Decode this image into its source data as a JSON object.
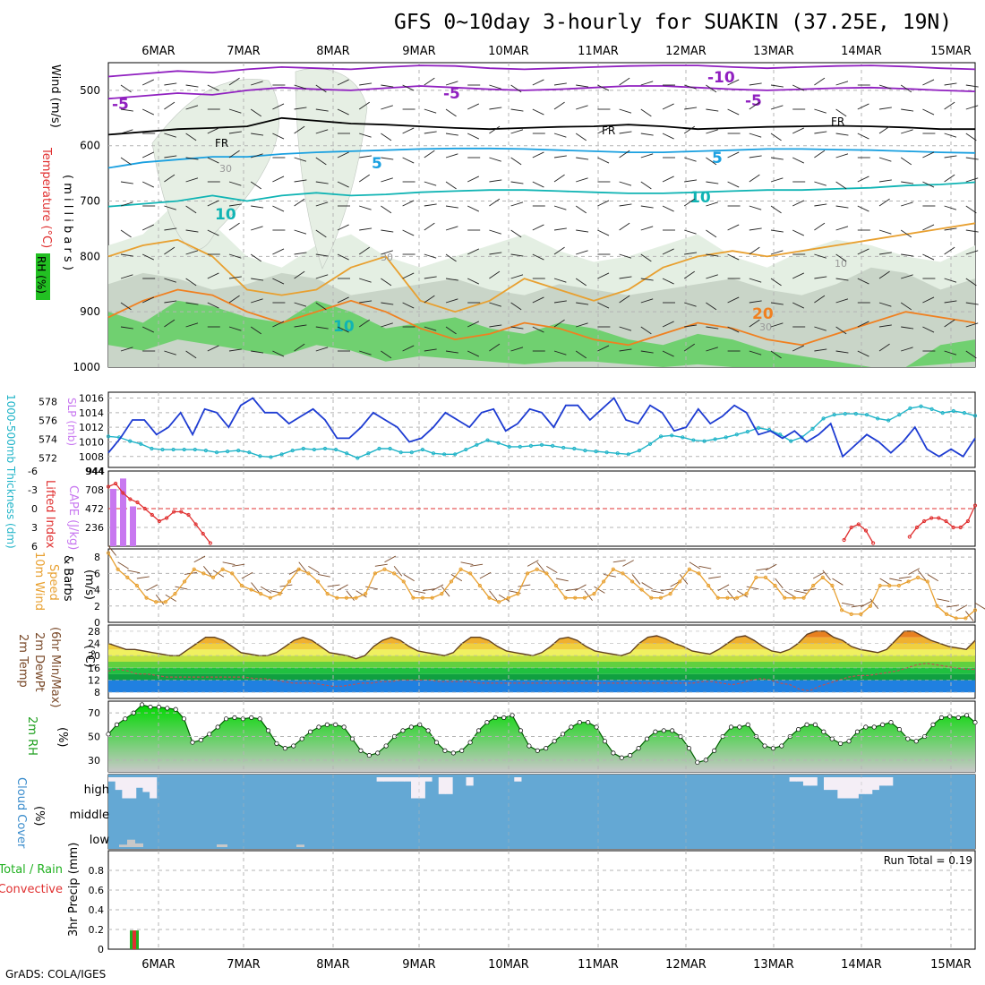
{
  "title": "GFS 0~10day 3-hourly for SUAKIN (37.25E, 19N)",
  "footer": "GrADS: COLA/IGES",
  "dates": [
    "6MAR",
    "7MAR",
    "8MAR",
    "9MAR",
    "10MAR",
    "11MAR",
    "12MAR",
    "13MAR",
    "14MAR",
    "15MAR"
  ],
  "colors": {
    "grid": "#b4b4b4",
    "blue": "#1e3cd2",
    "cyan": "#20b4c8",
    "orange": "#e8a030",
    "green": "#10c810",
    "purple": "#c878f0",
    "red": "#e03030",
    "sky": "#64a8d4",
    "brown": "#7a4a2a"
  },
  "chart_data": [
    {
      "type": "contour",
      "panel": "upper-air",
      "ylabels": [
        "Wind (m/s)",
        "Temperature (°C)",
        "RH (%)"
      ],
      "yunit": "millibars",
      "yticks": [
        500,
        600,
        700,
        800,
        900,
        1000
      ],
      "ylim": [
        1000,
        450
      ],
      "contour_labels": [
        "-10",
        "-5",
        "-5",
        "-5",
        "FR",
        "FR",
        "FR",
        "5",
        "5",
        "10",
        "10",
        "10",
        "20",
        "30",
        "30",
        "30",
        "10"
      ]
    },
    {
      "type": "line",
      "panel": "thickness-slp",
      "ylabel_left": "1000-500mb Thickness (dm)",
      "ylabel_right": "SLP (mb)",
      "left_ticks": [
        572,
        574,
        576,
        578
      ],
      "right_ticks": [
        1008,
        1010,
        1012,
        1014,
        1016
      ],
      "series": [
        {
          "name": "SLP (mb)",
          "values": [
            1008.5,
            1010.5,
            1013,
            1013,
            1011,
            1012,
            1014,
            1011,
            1014.5,
            1014,
            1012,
            1015,
            1016,
            1014,
            1014,
            1012.5,
            1013.5,
            1014.5,
            1013,
            1010.5,
            1010.5,
            1012,
            1014,
            1013,
            1012,
            1010,
            1010.5,
            1012,
            1014,
            1013,
            1012,
            1014,
            1014.5,
            1011.5,
            1012.5,
            1014.5,
            1014,
            1012,
            1015,
            1015,
            1013,
            1014.5,
            1016,
            1013,
            1012.5,
            1015,
            1014,
            1011.5,
            1012,
            1014.5,
            1012.5,
            1013.5,
            1015,
            1014,
            1011,
            1011.5,
            1010.5,
            1011.5,
            1010,
            1011,
            1012.5,
            1008,
            1009.5,
            1011,
            1010,
            1008.5,
            1010,
            1012,
            1009,
            1008,
            1009,
            1008,
            1010.5
          ]
        },
        {
          "name": "1000-500mb Thickness (dm)",
          "values": [
            574.3,
            574.2,
            573.8,
            573.5,
            573.0,
            572.9,
            572.9,
            572.9,
            572.9,
            572.8,
            572.6,
            572.7,
            572.8,
            572.6,
            572.2,
            572.1,
            572.4,
            572.8,
            573.0,
            572.9,
            573.0,
            572.9,
            572.5,
            572.0,
            572.5,
            573.0,
            573.0,
            572.6,
            572.6,
            572.9,
            572.5,
            572.4,
            572.4,
            572.9,
            573.4,
            573.9,
            573.6,
            573.2,
            573.2,
            573.3,
            573.4,
            573.3,
            573.1,
            573.0,
            572.8,
            572.7,
            572.6,
            572.5,
            572.4,
            572.8,
            573.5,
            574.3,
            574.4,
            574.2,
            573.9,
            573.8,
            574.0,
            574.2,
            574.5,
            574.8,
            575.2,
            575.0,
            574.5,
            573.8,
            574.2,
            575.1,
            576.2,
            576.6,
            576.7,
            576.7,
            576.6,
            576.2,
            576.0,
            576.6,
            577.3,
            577.5,
            577.2,
            576.8,
            577.0,
            576.8,
            576.5
          ]
        }
      ]
    },
    {
      "type": "bar",
      "panel": "lifted-index-cape",
      "ylabel_left": "Lifted Index",
      "ylabel_right": "CAPE (J/kg)",
      "left_ticks": [
        "-6",
        "-3",
        "0",
        "3",
        "6"
      ],
      "right_ticks": [
        236,
        472,
        708,
        944
      ],
      "cape_values": [
        720,
        850,
        500
      ],
      "lifted_index": [
        -3.5,
        -4,
        -2.5,
        -1.5,
        -1,
        0,
        1,
        2,
        1.5,
        0.5,
        0.5,
        1,
        2.5,
        4,
        5.5,
        7,
        8,
        9,
        9,
        9,
        9,
        9,
        9,
        9,
        9,
        9,
        9,
        9,
        9,
        9,
        9,
        9,
        9,
        9,
        9,
        9,
        9,
        9,
        9,
        9,
        9,
        9,
        9,
        9,
        9,
        9,
        9,
        9,
        9,
        9,
        9,
        9,
        9,
        9,
        9,
        9,
        9,
        9,
        9,
        9,
        9,
        9,
        9,
        9,
        9,
        9,
        9,
        9,
        9,
        9,
        9,
        9,
        9,
        9,
        9,
        9,
        9,
        9,
        9,
        9,
        9,
        9,
        9,
        9,
        9,
        9,
        9,
        9,
        9,
        9,
        9,
        9,
        9,
        9,
        9,
        9,
        9,
        9,
        9,
        9,
        9,
        5,
        3,
        2.5,
        3.5,
        5.5,
        8,
        9,
        9,
        9,
        4.5,
        3,
        2,
        1.5,
        1.5,
        2,
        3,
        3,
        2,
        -0.5
      ]
    },
    {
      "type": "line",
      "panel": "10m-wind",
      "ylabel": "10m Wind Speed & Barbs (m/s)",
      "yticks": [
        0,
        2,
        4,
        6,
        8
      ],
      "ylim": [
        0,
        9
      ],
      "values": [
        8.5,
        6.5,
        5.5,
        4.5,
        3,
        2.5,
        2.5,
        3.5,
        5,
        6.5,
        6,
        5.5,
        6.5,
        6,
        4.5,
        4,
        3.5,
        3,
        3.5,
        5,
        6.5,
        6,
        5,
        3.5,
        3,
        3,
        3,
        3.5,
        6,
        6.5,
        6,
        5,
        3,
        3,
        3,
        3.5,
        5,
        6.5,
        6,
        4.5,
        3,
        2.5,
        3,
        3.5,
        6,
        6.5,
        6,
        4.5,
        3,
        3,
        3,
        3.5,
        5,
        6.5,
        6,
        5,
        4,
        3,
        3,
        3.5,
        5,
        6.5,
        6,
        4.5,
        3,
        3,
        3,
        3.5,
        5.5,
        5.5,
        4.5,
        3,
        3,
        3,
        4.5,
        5.5,
        4.5,
        1.5,
        1,
        1,
        2,
        4.5,
        4.5,
        4.5,
        5,
        5.5,
        5,
        2,
        1,
        0.5,
        0.5,
        1.5
      ]
    },
    {
      "type": "area",
      "panel": "2m-temp",
      "ylabel": "2m Temp 2m DewPt (6hr Min/Max) (°C)",
      "yticks": [
        8,
        12,
        16,
        20,
        24,
        28
      ],
      "ylim": [
        6,
        30
      ],
      "temp": [
        24,
        23,
        22,
        22,
        21.5,
        21,
        20.5,
        20,
        20,
        22,
        24,
        26,
        26,
        25,
        23,
        21,
        20.5,
        20,
        20,
        21,
        23,
        25,
        26,
        25,
        23,
        21,
        20.5,
        20,
        19,
        20,
        23,
        25,
        26,
        25,
        23,
        21.5,
        21,
        20.5,
        20,
        21,
        24,
        26,
        26,
        25,
        23,
        21.5,
        21,
        20.5,
        20,
        21,
        23,
        25.5,
        26,
        25,
        23,
        21.5,
        21,
        20.5,
        20,
        21,
        24,
        26,
        26.5,
        25.5,
        24,
        23,
        21.5,
        21,
        20.5,
        22,
        24,
        26,
        26.5,
        25,
        23,
        21.5,
        21,
        22,
        24,
        27,
        28,
        28,
        26,
        25,
        23,
        22,
        21.5,
        21,
        22,
        25,
        28,
        28,
        26.5,
        25,
        24,
        23,
        22.5,
        22,
        25
      ],
      "dewpt": [
        15,
        15.5,
        15,
        14,
        14,
        13.5,
        13,
        13,
        13,
        13,
        13,
        13,
        13,
        13,
        13,
        12.5,
        12.5,
        12,
        11.5,
        11,
        11,
        11,
        10.5,
        10,
        10,
        10.5,
        11,
        11,
        11.5,
        11.5,
        12,
        12,
        12,
        12,
        11.5,
        11.5,
        11.5,
        11.5,
        11,
        11,
        11,
        11,
        11,
        11,
        11,
        11,
        11,
        11,
        11,
        11,
        11,
        11,
        11,
        11,
        11,
        11,
        11,
        11,
        11,
        11,
        11,
        11.5,
        11.5,
        11,
        10.5,
        11,
        12,
        12.5,
        12,
        11,
        10.5,
        9,
        8.5,
        10,
        11,
        12,
        13,
        13.5,
        13.5,
        14,
        14.5,
        15,
        16,
        17,
        17.5,
        17,
        16.5,
        16,
        15.5,
        15.5
      ]
    },
    {
      "type": "area",
      "panel": "2m-rh",
      "ylabel": "2m RH (%)",
      "yticks": [
        30,
        50,
        70
      ],
      "ylim": [
        20,
        80
      ],
      "values": [
        52,
        60,
        65,
        70,
        77,
        75,
        75,
        74,
        73,
        65,
        45,
        47,
        52,
        58,
        65,
        66,
        65,
        66,
        65,
        55,
        44,
        40,
        42,
        48,
        54,
        58,
        60,
        60,
        58,
        48,
        38,
        34,
        36,
        42,
        50,
        55,
        58,
        60,
        55,
        45,
        38,
        36,
        38,
        45,
        55,
        62,
        66,
        66,
        68,
        55,
        42,
        38,
        40,
        46,
        52,
        58,
        62,
        62,
        58,
        46,
        36,
        32,
        34,
        40,
        48,
        54,
        55,
        55,
        50,
        40,
        28,
        30,
        38,
        50,
        58,
        58,
        60,
        50,
        42,
        40,
        42,
        50,
        56,
        60,
        60,
        54,
        48,
        44,
        46,
        54,
        58,
        58,
        60,
        62,
        56,
        48,
        46,
        50,
        60,
        66,
        67,
        66,
        68,
        62
      ]
    },
    {
      "type": "bar",
      "panel": "cloud-cover",
      "ylabel": "Cloud Cover (%)",
      "yticks": [
        "high",
        "middle",
        "low"
      ],
      "high_values": [
        20,
        60,
        100,
        100,
        50,
        70,
        100,
        0,
        0,
        0,
        0,
        0,
        0,
        0,
        0,
        0,
        0,
        0,
        0,
        0,
        0,
        0,
        0,
        0,
        0,
        0,
        0,
        0,
        0,
        0,
        0,
        0,
        0,
        0,
        0,
        0,
        0,
        0,
        0,
        20,
        20,
        20,
        20,
        20,
        100,
        100,
        20,
        0,
        80,
        80,
        0,
        0,
        40,
        0,
        0,
        0,
        0,
        0,
        0,
        20,
        0,
        0,
        0,
        0,
        0,
        0,
        0,
        0,
        0,
        0,
        0,
        0,
        0,
        0,
        0,
        0,
        0,
        0,
        0,
        0,
        0,
        0,
        0,
        0,
        0,
        0,
        0,
        0,
        0,
        0,
        0,
        0,
        0,
        0,
        0,
        0,
        0,
        0,
        0,
        20,
        20,
        40,
        40,
        0,
        60,
        60,
        100,
        100,
        100,
        80,
        80,
        60,
        40,
        40,
        0,
        0,
        0,
        0,
        0,
        0,
        0,
        0,
        0,
        0,
        0,
        0
      ],
      "low_values": [
        20,
        60,
        30,
        0,
        0,
        0,
        0,
        0,
        0,
        0,
        0,
        0,
        0,
        0,
        0,
        0,
        0,
        0,
        0,
        0,
        0,
        0,
        20,
        0,
        0
      ]
    },
    {
      "type": "bar",
      "panel": "precip",
      "ylabel": "Total / Rain / Convective 3hr Precip (mm)",
      "legend": [
        "Total",
        "Rain",
        "Convective"
      ],
      "yticks": [
        "0",
        "0.2",
        "0.4",
        "0.6",
        "0.8"
      ],
      "ylim": [
        0,
        1
      ],
      "run_total_label": "Run Total = 0.19",
      "values": [
        0.19
      ]
    }
  ]
}
